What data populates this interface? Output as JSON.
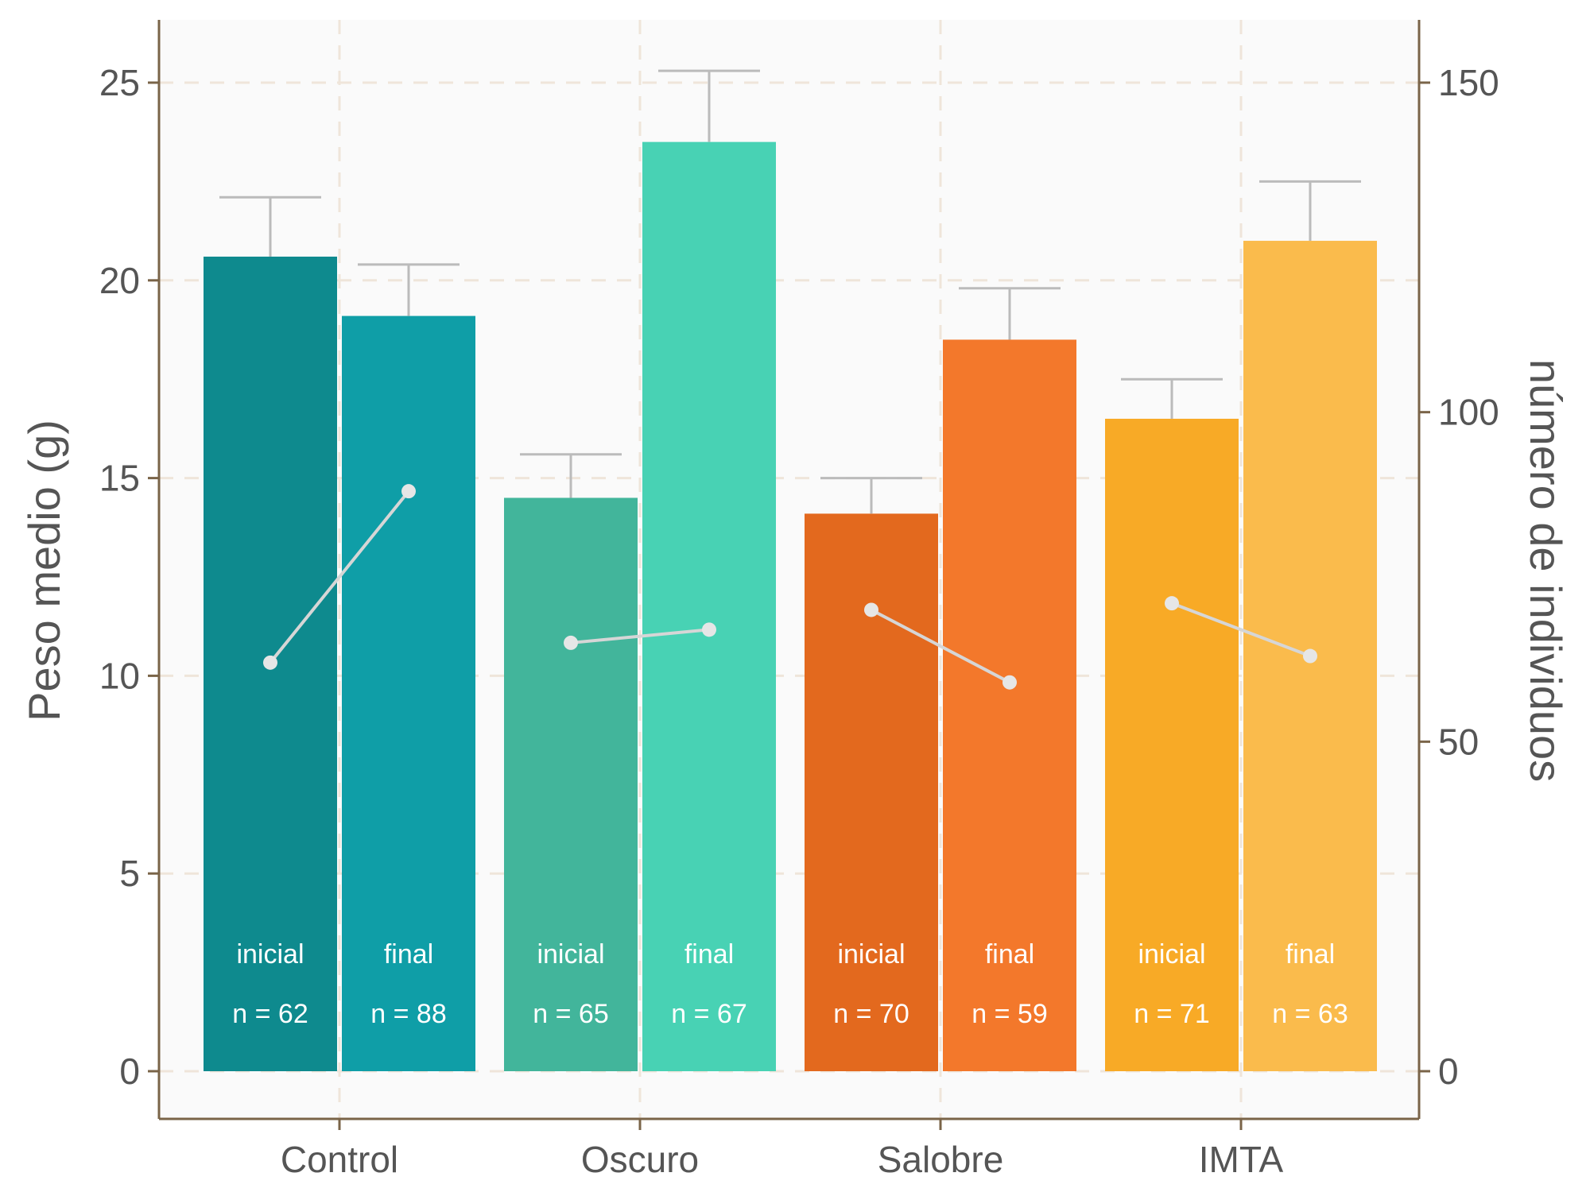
{
  "chart_data": {
    "type": "bar",
    "categories": [
      "Control",
      "Oscuro",
      "Salobre",
      "IMTA"
    ],
    "ylabel": "Peso medio (g)",
    "y2label": "número de individuos",
    "ylim": [
      0,
      25
    ],
    "y2lim": [
      0,
      150
    ],
    "y_ticks": [
      "0",
      "5",
      "10",
      "15",
      "20",
      "25"
    ],
    "y2_ticks": [
      "0",
      "50",
      "100",
      "150"
    ],
    "grid": true,
    "bars": [
      {
        "category": "Control",
        "stage": "inicial",
        "n_label": "n = 62",
        "weight": 20.6,
        "error": 1.5,
        "count": 62,
        "color": "#0e8a8e"
      },
      {
        "category": "Control",
        "stage": "final",
        "n_label": "n = 88",
        "weight": 19.1,
        "error": 1.3,
        "count": 88,
        "color": "#0f9ea7"
      },
      {
        "category": "Oscuro",
        "stage": "inicial",
        "n_label": "n = 65",
        "weight": 14.5,
        "error": 1.1,
        "count": 65,
        "color": "#42b59b"
      },
      {
        "category": "Oscuro",
        "stage": "final",
        "n_label": "n = 67",
        "weight": 23.5,
        "error": 1.8,
        "count": 67,
        "color": "#48d2b4"
      },
      {
        "category": "Salobre",
        "stage": "inicial",
        "n_label": "n = 70",
        "weight": 14.1,
        "error": 0.9,
        "count": 70,
        "color": "#e3691e"
      },
      {
        "category": "Salobre",
        "stage": "final",
        "n_label": "n = 59",
        "weight": 18.5,
        "error": 1.3,
        "count": 59,
        "color": "#f3782b"
      },
      {
        "category": "IMTA",
        "stage": "inicial",
        "n_label": "n = 71",
        "weight": 16.5,
        "error": 1.0,
        "count": 71,
        "color": "#f8aa26"
      },
      {
        "category": "IMTA",
        "stage": "final",
        "n_label": "n = 63",
        "weight": 21.0,
        "error": 1.5,
        "count": 63,
        "color": "#fabb4c"
      }
    ],
    "colors": {
      "panel": "#fafafa",
      "axis": "#7a6448",
      "grid": "#efe5da",
      "error_bar": "#bbbbbb",
      "count_line": "#d6d6d6",
      "count_point": "#e6e6e6"
    }
  }
}
